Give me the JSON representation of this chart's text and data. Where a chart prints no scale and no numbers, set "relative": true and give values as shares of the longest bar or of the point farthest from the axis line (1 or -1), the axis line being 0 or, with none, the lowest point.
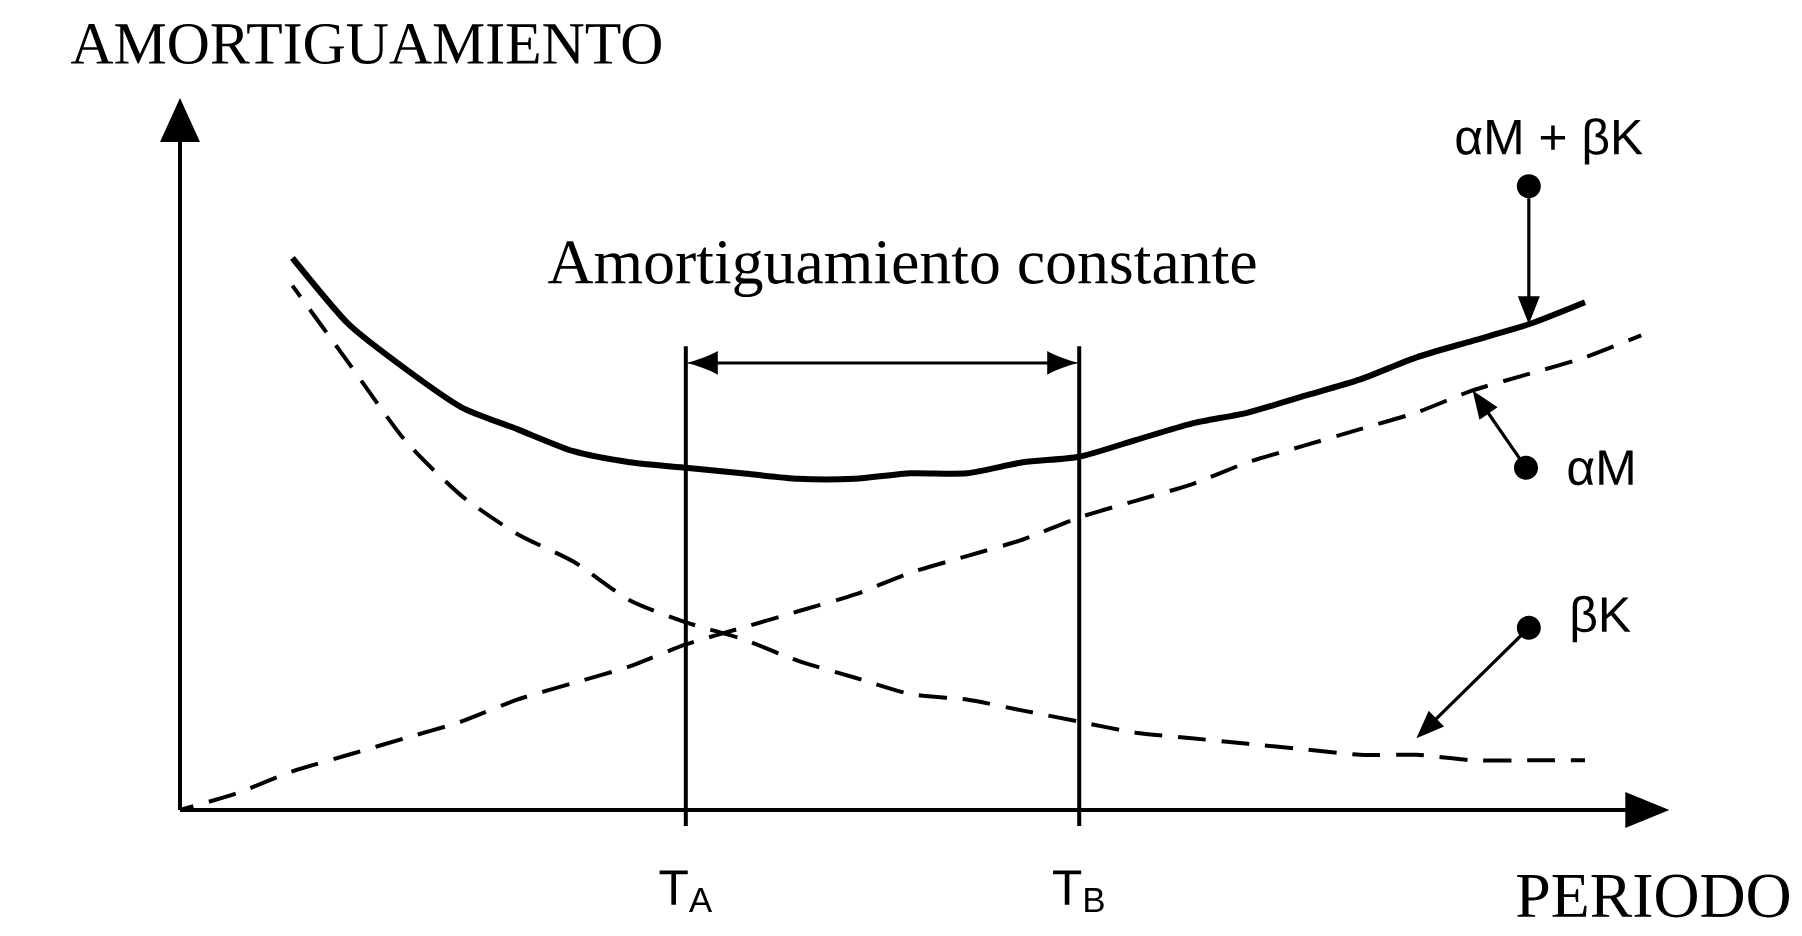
{
  "chart_data": {
    "type": "line",
    "relative": true,
    "ylabel": "AMORTIGUAMIENTO",
    "xlabel": "PERIODO",
    "legend": "right",
    "categories": [
      null,
      null,
      null,
      null,
      null,
      null,
      null,
      null,
      null,
      "T$_{A}$",
      null,
      null,
      null,
      null,
      null,
      null,
      "T$_{B}$",
      null,
      null,
      null,
      null,
      null,
      null,
      null,
      null,
      null,
      null
    ],
    "series": [
      {
        "name": "αM + βK",
        "color": "#000000",
        "line_style": "solid",
        "values": [
          null,
          null,
          1.0,
          0.88,
          0.8,
          0.73,
          0.69,
          0.65,
          0.63,
          0.62,
          0.61,
          0.6,
          0.6,
          0.61,
          0.61,
          0.63,
          0.64,
          0.67,
          0.7,
          0.72,
          0.75,
          0.78,
          0.82,
          0.85,
          0.88,
          0.92,
          null
        ]
      },
      {
        "name": "αM",
        "color": "#000000",
        "line_style": "dashed",
        "values": [
          0,
          0.03,
          0.07,
          0.1,
          0.13,
          0.16,
          0.2,
          0.23,
          0.26,
          0.3,
          0.33,
          0.36,
          0.39,
          0.43,
          0.46,
          0.49,
          0.53,
          0.56,
          0.59,
          0.63,
          0.66,
          0.69,
          0.72,
          0.76,
          0.79,
          0.82,
          0.86
        ]
      },
      {
        "name": "βK",
        "color": "#000000",
        "line_style": "dashed",
        "values": [
          null,
          null,
          0.95,
          0.81,
          0.67,
          0.57,
          0.5,
          0.45,
          0.38,
          0.34,
          0.31,
          0.27,
          0.24,
          0.21,
          0.2,
          0.18,
          0.16,
          0.14,
          0.13,
          0.12,
          0.11,
          0.1,
          0.1,
          0.09,
          0.09,
          0.09,
          null
        ]
      }
    ],
    "ref_lines": [
      {
        "axis": "x",
        "value": "T$_{A}$"
      },
      {
        "axis": "x",
        "value": "T$_{B}$"
      }
    ],
    "annotations": [
      "Amortiguamiento constante"
    ]
  }
}
